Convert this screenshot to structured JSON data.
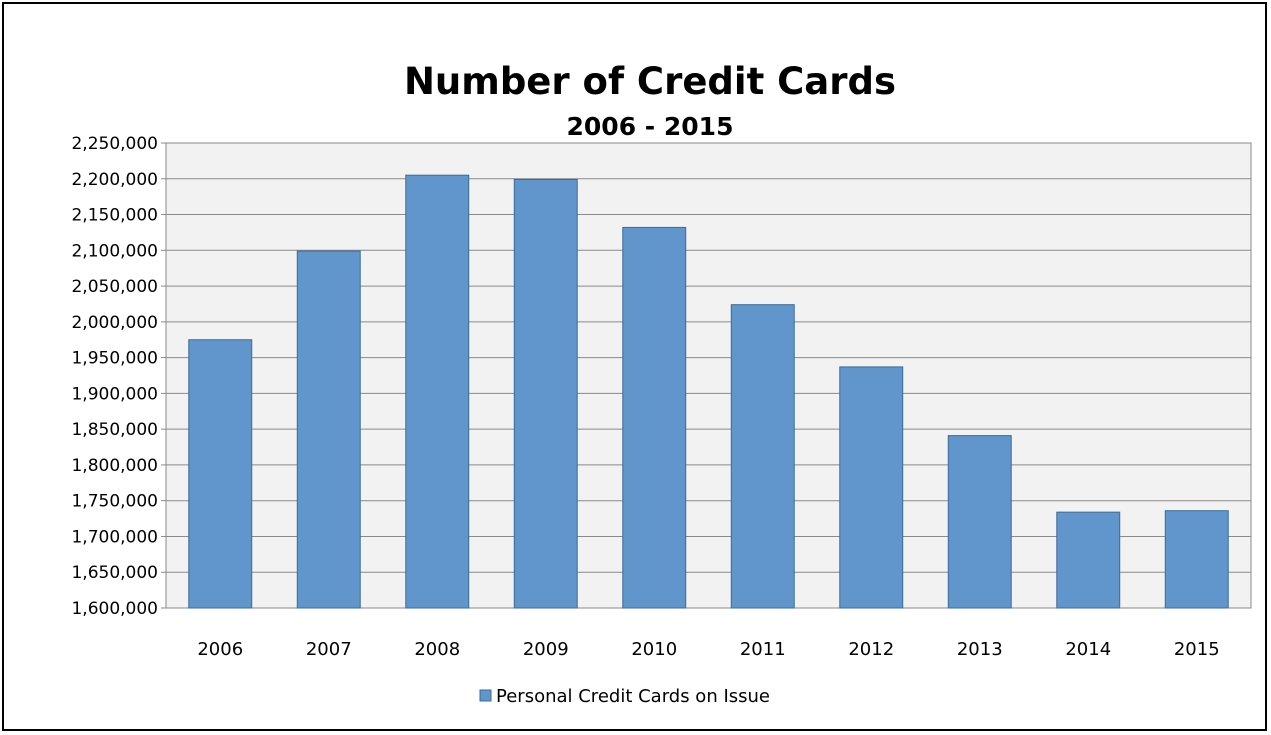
{
  "chart_data": {
    "type": "bar",
    "title": "Number of Credit Cards",
    "subtitle": "2006 - 2015",
    "xlabel": "",
    "ylabel": "",
    "categories": [
      "2006",
      "2007",
      "2008",
      "2009",
      "2010",
      "2011",
      "2012",
      "2013",
      "2014",
      "2015"
    ],
    "series": [
      {
        "name": "Personal Credit Cards on Issue",
        "values": [
          1975000,
          2099000,
          2205000,
          2199000,
          2132000,
          2024000,
          1937000,
          1841000,
          1734000,
          1736000
        ]
      }
    ],
    "ylim": [
      1600000,
      2250000
    ],
    "ytick_step": 50000,
    "ytick_labels": [
      "1,600,000",
      "1,650,000",
      "1,700,000",
      "1,750,000",
      "1,800,000",
      "1,850,000",
      "1,900,000",
      "1,950,000",
      "2,000,000",
      "2,050,000",
      "2,100,000",
      "2,150,000",
      "2,200,000",
      "2,250,000"
    ],
    "grid": true,
    "legend_position": "bottom",
    "colors": {
      "bar_fill": "#6096cc",
      "bar_stroke": "#3d6a98",
      "plot_background": "#f2f2f2",
      "gridline": "#8a8a8a"
    }
  }
}
